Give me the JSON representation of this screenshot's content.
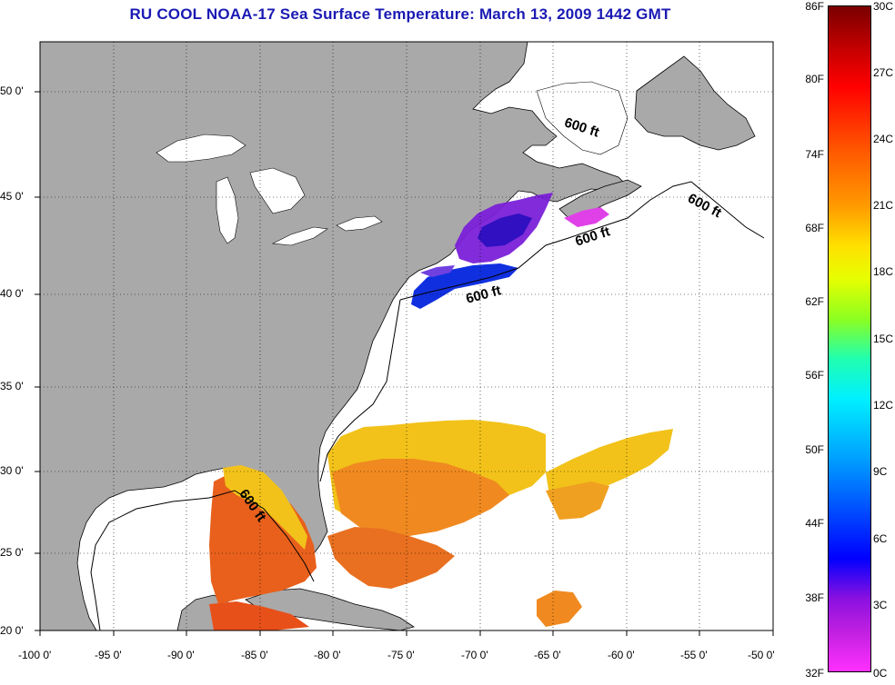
{
  "title": "RU COOL  NOAA-17  Sea Surface Temperature:  March 13, 2009 1442 GMT",
  "lat_labels": [
    "50 0'",
    "45 0'",
    "40 0'",
    "35 0'",
    "30 0'",
    "25 0'",
    "20 0'"
  ],
  "lon_labels": [
    "-100 0'",
    "-95 0'",
    "-90 0'",
    "-85 0'",
    "-80 0'",
    "-75 0'",
    "-70 0'",
    "-65 0'",
    "-60 0'",
    "-55 0'",
    "-50 0'"
  ],
  "colorbar": {
    "fahrenheit": [
      "86F",
      "80F",
      "74F",
      "68F",
      "62F",
      "56F",
      "50F",
      "44F",
      "38F",
      "32F"
    ],
    "celsius": [
      "30C",
      "27C",
      "24C",
      "21C",
      "18C",
      "15C",
      "12C",
      "9C",
      "6C",
      "3C",
      "0C"
    ]
  },
  "isobath_labels": [
    "600 ft",
    "600 ft",
    "600 ft",
    "600 ft",
    "600 ft"
  ],
  "colors": {
    "land": "#a9a9a9",
    "ocean_no_data": "#ffffff",
    "title": "#1a1ab4"
  }
}
